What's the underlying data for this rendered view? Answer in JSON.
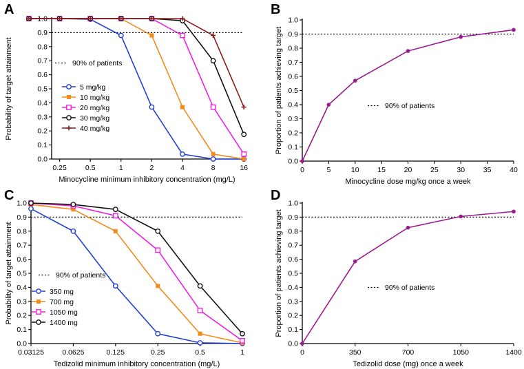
{
  "chart_data": [
    {
      "panel": "A",
      "type": "line",
      "xlabel": "Minocycline minimum inhibitory concentration (mg/L)",
      "ylabel": "Probability of target attainment",
      "ylim": [
        0,
        1
      ],
      "categories": [
        "",
        "0.25",
        "0.5",
        "1",
        "2",
        "4",
        "8",
        "16"
      ],
      "yticks": [
        "0.0",
        "0.1",
        "0.2",
        "0.3",
        "0.4",
        "0.5",
        "0.6",
        "0.7",
        "0.8",
        "0.9",
        "1.0"
      ],
      "reference": {
        "y": 0.9,
        "label": "90% of patients"
      },
      "series": [
        {
          "name": "5 mg/kg",
          "color": "#1f3fd6",
          "marker": "circle",
          "values": [
            1.0,
            1.0,
            0.995,
            0.88,
            0.37,
            0.035,
            0.0,
            0.0
          ]
        },
        {
          "name": "10 mg/kg",
          "color": "#f28c1a",
          "marker": "square-filled",
          "values": [
            1.0,
            1.0,
            1.0,
            1.0,
            0.88,
            0.37,
            0.035,
            0.0
          ]
        },
        {
          "name": "20 mg/kg",
          "color": "#f020e0",
          "marker": "square-open",
          "values": [
            1.0,
            1.0,
            1.0,
            1.0,
            1.0,
            0.88,
            0.37,
            0.035
          ]
        },
        {
          "name": "30 mg/kg",
          "color": "#111111",
          "marker": "circle",
          "values": [
            1.0,
            1.0,
            1.0,
            1.0,
            1.0,
            0.985,
            0.7,
            0.175
          ]
        },
        {
          "name": "40 mg/kg",
          "color": "#8b1a1a",
          "marker": "plus",
          "values": [
            1.0,
            1.0,
            1.0,
            1.0,
            1.0,
            1.0,
            0.88,
            0.37
          ]
        }
      ]
    },
    {
      "panel": "B",
      "type": "line",
      "xlabel": "Minocycline dose mg/kg once a week",
      "ylabel": "Proportion of patients achieving target",
      "xlim": [
        0,
        40
      ],
      "ylim": [
        0,
        1
      ],
      "xticks": [
        "0",
        "5",
        "10",
        "15",
        "20",
        "25",
        "30",
        "35",
        "40"
      ],
      "yticks": [
        "0.0",
        "0.1",
        "0.2",
        "0.3",
        "0.4",
        "0.5",
        "0.6",
        "0.7",
        "0.8",
        "0.9",
        "1.0"
      ],
      "reference": {
        "y": 0.9,
        "label": "90% of patients"
      },
      "series": [
        {
          "name": "Minocycline",
          "color": "#9b1a8e",
          "x": [
            0,
            5,
            10,
            20,
            30,
            40
          ],
          "values": [
            0.0,
            0.4,
            0.57,
            0.78,
            0.88,
            0.93
          ]
        }
      ]
    },
    {
      "panel": "C",
      "type": "line",
      "xlabel": "Tedizolid minimum inhibitory concentration (mg/L)",
      "ylabel": "Probability of target attainment",
      "ylim": [
        0,
        1
      ],
      "categories": [
        "0.03125",
        "0.0625",
        "0.125",
        "0.25",
        "0.5",
        "1"
      ],
      "yticks": [
        "0.0",
        "0.1",
        "0.2",
        "0.3",
        "0.4",
        "0.5",
        "0.6",
        "0.7",
        "0.8",
        "0.9",
        "1.0"
      ],
      "reference": {
        "y": 0.9,
        "label": "90% of patients"
      },
      "series": [
        {
          "name": "350 mg",
          "color": "#1f3fd6",
          "marker": "circle",
          "values": [
            0.96,
            0.8,
            0.41,
            0.07,
            0.005,
            0.0
          ]
        },
        {
          "name": "700 mg",
          "color": "#f28c1a",
          "marker": "square-filled",
          "values": [
            0.99,
            0.955,
            0.8,
            0.41,
            0.07,
            0.005
          ]
        },
        {
          "name": "1050 mg",
          "color": "#f020e0",
          "marker": "square-open",
          "values": [
            1.0,
            0.98,
            0.91,
            0.665,
            0.235,
            0.02
          ]
        },
        {
          "name": "1400 mg",
          "color": "#111111",
          "marker": "circle",
          "values": [
            1.0,
            0.99,
            0.955,
            0.8,
            0.41,
            0.07
          ]
        }
      ]
    },
    {
      "panel": "D",
      "type": "line",
      "xlabel": "Tedizolid dose (mg) once a week",
      "ylabel": "Proportion of patients achieving target",
      "xlim": [
        0,
        1400
      ],
      "ylim": [
        0,
        1
      ],
      "xticks": [
        "0",
        "350",
        "700",
        "1050",
        "1400"
      ],
      "yticks": [
        "0.0",
        "0.1",
        "0.2",
        "0.3",
        "0.4",
        "0.5",
        "0.6",
        "0.7",
        "0.8",
        "0.9",
        "1.0"
      ],
      "reference": {
        "y": 0.9,
        "label": "90% of patients"
      },
      "series": [
        {
          "name": "Tedizolid",
          "color": "#9b1a8e",
          "x": [
            0,
            350,
            700,
            1050,
            1400
          ],
          "values": [
            0.0,
            0.585,
            0.825,
            0.905,
            0.94
          ]
        }
      ]
    }
  ]
}
